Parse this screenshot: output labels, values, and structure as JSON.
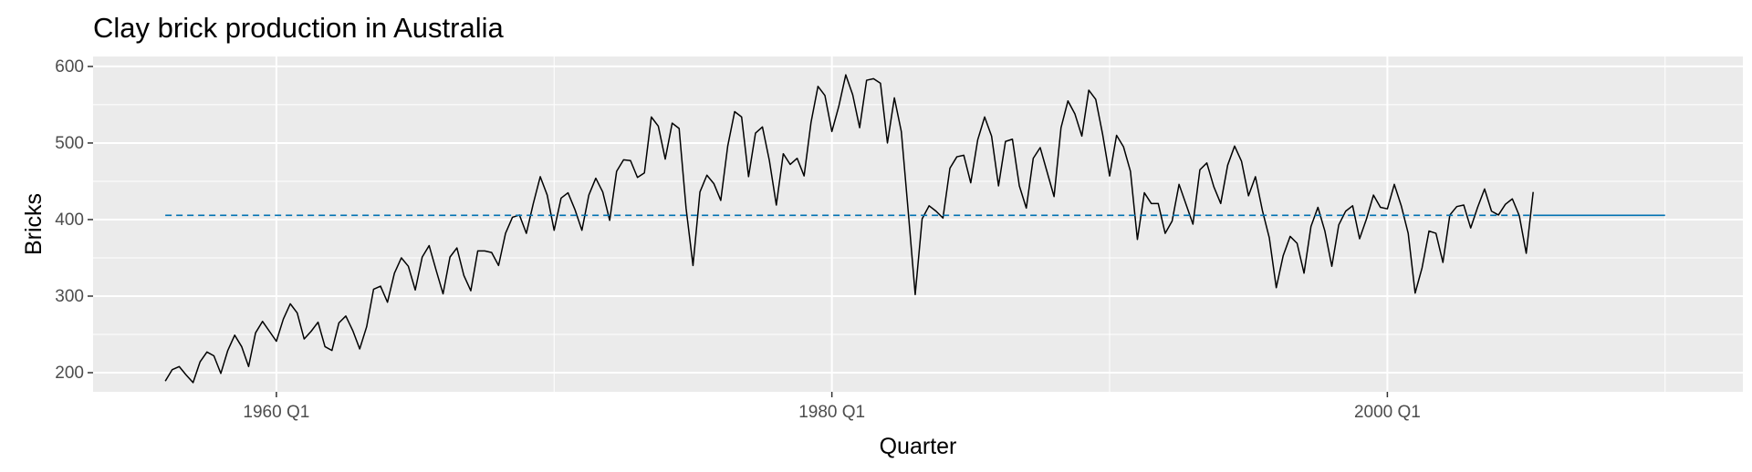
{
  "chart_data": {
    "type": "line",
    "title": "Clay brick production in Australia",
    "xlabel": "Quarter",
    "ylabel": "Bricks",
    "grid": true,
    "legend": "none",
    "xlim": [
      1953.4,
      2012.8
    ],
    "ylim": [
      175,
      613
    ],
    "x_ticks": [
      {
        "value": 1960.0,
        "label": "1960 Q1"
      },
      {
        "value": 1980.0,
        "label": "1980 Q1"
      },
      {
        "value": 2000.0,
        "label": "2000 Q1"
      }
    ],
    "y_ticks": [
      200,
      300,
      400,
      500,
      600
    ],
    "series": [
      {
        "style": "solid",
        "color": "#000000",
        "x_start": 1956.0,
        "x_step": 0.25,
        "values": [
          189,
          204,
          208,
          197,
          187,
          214,
          227,
          222,
          199,
          229,
          249,
          234,
          208,
          252,
          267,
          254,
          241,
          270,
          290,
          278,
          244,
          254,
          266,
          234,
          229,
          265,
          274,
          255,
          231,
          260,
          309,
          313,
          292,
          330,
          350,
          339,
          308,
          351,
          366,
          334,
          303,
          351,
          363,
          327,
          307,
          359,
          359,
          357,
          340,
          382,
          403,
          406,
          382,
          421,
          456,
          432,
          386,
          428,
          435,
          413,
          386,
          432,
          454,
          436,
          399,
          463,
          478,
          477,
          455,
          461,
          534,
          522,
          479,
          526,
          519,
          415,
          340,
          436,
          458,
          447,
          425,
          496,
          541,
          534,
          456,
          513,
          521,
          477,
          419,
          486,
          472,
          480,
          457,
          527,
          574,
          562,
          515,
          548,
          589,
          563,
          520,
          582,
          584,
          578,
          500,
          559,
          515,
          410,
          302,
          401,
          418,
          411,
          402,
          467,
          482,
          484,
          448,
          504,
          534,
          509,
          444,
          502,
          505,
          444,
          415,
          480,
          494,
          462,
          430,
          520,
          555,
          538,
          509,
          569,
          557,
          511,
          457,
          510,
          495,
          463,
          374,
          435,
          421,
          421,
          382,
          398,
          446,
          420,
          394,
          465,
          474,
          443,
          421,
          471,
          496,
          476,
          431,
          456,
          412,
          376,
          311,
          353,
          378,
          369,
          330,
          391,
          416,
          385,
          339,
          393,
          411,
          418,
          375,
          401,
          432,
          416,
          414,
          446,
          418,
          382,
          304,
          337,
          385,
          382,
          344,
          406,
          417,
          419,
          389,
          416,
          440,
          411,
          406,
          420,
          427,
          405,
          356,
          436
        ]
      },
      {
        "style": "dashed",
        "color": "#0072B2",
        "x_range": [
          1956.0,
          2005.25
        ],
        "value": 405.5
      },
      {
        "style": "solid",
        "color": "#0072B2",
        "x_range": [
          2005.25,
          2010.0
        ],
        "value": 405.5
      }
    ]
  }
}
